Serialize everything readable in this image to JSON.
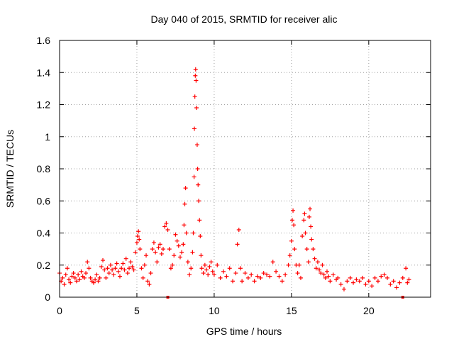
{
  "chart_data": {
    "type": "scatter",
    "title": "Day 040 of 2015, SRMTID for receiver alic",
    "xlabel": "GPS time / hours",
    "ylabel": "SRMTID / TECUs",
    "xlim": [
      0,
      24
    ],
    "ylim": [
      0,
      1.6
    ],
    "xticks": [
      0,
      5,
      10,
      15,
      20
    ],
    "xtick_labels": [
      "0",
      "5",
      "10",
      "15",
      "20"
    ],
    "yticks": [
      0,
      0.2,
      0.4,
      0.6,
      0.8,
      1.0,
      1.2,
      1.4,
      1.6
    ],
    "ytick_labels": [
      "0",
      "0.2",
      "0.4",
      "0.6",
      "0.8",
      "1",
      "1.2",
      "1.4",
      "1.6"
    ],
    "grid": true,
    "marker": "plus",
    "color": "#ff0000",
    "series": [
      {
        "name": "SRMTID",
        "points": [
          [
            0.0,
            0.15
          ],
          [
            0.1,
            0.1
          ],
          [
            0.2,
            0.12
          ],
          [
            0.3,
            0.08
          ],
          [
            0.4,
            0.14
          ],
          [
            0.5,
            0.18
          ],
          [
            0.6,
            0.11
          ],
          [
            0.7,
            0.09
          ],
          [
            0.8,
            0.13
          ],
          [
            0.9,
            0.15
          ],
          [
            1.0,
            0.12
          ],
          [
            1.1,
            0.1
          ],
          [
            1.2,
            0.14
          ],
          [
            1.3,
            0.11
          ],
          [
            1.4,
            0.16
          ],
          [
            1.5,
            0.13
          ],
          [
            1.6,
            0.12
          ],
          [
            1.7,
            0.15
          ],
          [
            1.8,
            0.22
          ],
          [
            1.9,
            0.18
          ],
          [
            2.0,
            0.12
          ],
          [
            2.1,
            0.1
          ],
          [
            2.2,
            0.09
          ],
          [
            2.3,
            0.11
          ],
          [
            2.4,
            0.14
          ],
          [
            2.5,
            0.1
          ],
          [
            2.6,
            0.12
          ],
          [
            2.7,
            0.19
          ],
          [
            2.8,
            0.23
          ],
          [
            2.9,
            0.17
          ],
          [
            3.0,
            0.12
          ],
          [
            3.1,
            0.18
          ],
          [
            3.2,
            0.15
          ],
          [
            3.3,
            0.2
          ],
          [
            3.4,
            0.17
          ],
          [
            3.5,
            0.14
          ],
          [
            3.6,
            0.18
          ],
          [
            3.7,
            0.21
          ],
          [
            3.8,
            0.16
          ],
          [
            3.9,
            0.13
          ],
          [
            4.0,
            0.18
          ],
          [
            4.1,
            0.21
          ],
          [
            4.2,
            0.17
          ],
          [
            4.3,
            0.24
          ],
          [
            4.4,
            0.15
          ],
          [
            4.5,
            0.18
          ],
          [
            4.6,
            0.22
          ],
          [
            4.7,
            0.19
          ],
          [
            4.8,
            0.17
          ],
          [
            4.9,
            0.28
          ],
          [
            5.0,
            0.34
          ],
          [
            5.05,
            0.38
          ],
          [
            5.1,
            0.41
          ],
          [
            5.15,
            0.36
          ],
          [
            5.2,
            0.3
          ],
          [
            5.3,
            0.18
          ],
          [
            5.4,
            0.12
          ],
          [
            5.5,
            0.2
          ],
          [
            5.6,
            0.26
          ],
          [
            5.7,
            0.1
          ],
          [
            5.8,
            0.08
          ],
          [
            5.9,
            0.15
          ],
          [
            6.0,
            0.3
          ],
          [
            6.1,
            0.34
          ],
          [
            6.2,
            0.28
          ],
          [
            6.3,
            0.22
          ],
          [
            6.4,
            0.31
          ],
          [
            6.5,
            0.33
          ],
          [
            6.6,
            0.27
          ],
          [
            6.7,
            0.3
          ],
          [
            6.8,
            0.44
          ],
          [
            6.9,
            0.46
          ],
          [
            7.0,
            0.42
          ],
          [
            7.1,
            0.3
          ],
          [
            7.2,
            0.18
          ],
          [
            7.3,
            0.2
          ],
          [
            7.4,
            0.26
          ],
          [
            7.5,
            0.39
          ],
          [
            7.6,
            0.35
          ],
          [
            7.7,
            0.32
          ],
          [
            7.8,
            0.25
          ],
          [
            7.9,
            0.28
          ],
          [
            8.0,
            0.33
          ],
          [
            8.05,
            0.45
          ],
          [
            8.1,
            0.58
          ],
          [
            8.15,
            0.68
          ],
          [
            8.2,
            0.4
          ],
          [
            8.3,
            0.22
          ],
          [
            8.4,
            0.14
          ],
          [
            8.5,
            0.18
          ],
          [
            8.6,
            0.28
          ],
          [
            8.65,
            0.4
          ],
          [
            8.7,
            0.75
          ],
          [
            8.72,
            1.05
          ],
          [
            8.75,
            1.25
          ],
          [
            8.78,
            1.38
          ],
          [
            8.8,
            1.42
          ],
          [
            8.83,
            1.35
          ],
          [
            8.86,
            1.18
          ],
          [
            8.9,
            0.95
          ],
          [
            8.93,
            0.8
          ],
          [
            8.96,
            0.7
          ],
          [
            9.0,
            0.6
          ],
          [
            9.05,
            0.48
          ],
          [
            9.1,
            0.38
          ],
          [
            9.15,
            0.26
          ],
          [
            9.2,
            0.18
          ],
          [
            9.3,
            0.15
          ],
          [
            9.4,
            0.2
          ],
          [
            9.5,
            0.17
          ],
          [
            9.6,
            0.14
          ],
          [
            9.7,
            0.19
          ],
          [
            9.8,
            0.22
          ],
          [
            9.9,
            0.16
          ],
          [
            10.0,
            0.14
          ],
          [
            10.2,
            0.2
          ],
          [
            10.4,
            0.12
          ],
          [
            10.6,
            0.16
          ],
          [
            10.8,
            0.13
          ],
          [
            11.0,
            0.18
          ],
          [
            11.2,
            0.1
          ],
          [
            11.4,
            0.15
          ],
          [
            11.5,
            0.33
          ],
          [
            11.6,
            0.42
          ],
          [
            11.7,
            0.18
          ],
          [
            11.8,
            0.1
          ],
          [
            12.0,
            0.15
          ],
          [
            12.2,
            0.12
          ],
          [
            12.4,
            0.14
          ],
          [
            12.6,
            0.1
          ],
          [
            12.8,
            0.13
          ],
          [
            13.0,
            0.12
          ],
          [
            13.2,
            0.15
          ],
          [
            13.4,
            0.14
          ],
          [
            13.6,
            0.13
          ],
          [
            13.8,
            0.22
          ],
          [
            14.0,
            0.16
          ],
          [
            14.2,
            0.13
          ],
          [
            14.4,
            0.1
          ],
          [
            14.6,
            0.14
          ],
          [
            14.8,
            0.2
          ],
          [
            14.9,
            0.26
          ],
          [
            15.0,
            0.35
          ],
          [
            15.05,
            0.48
          ],
          [
            15.1,
            0.54
          ],
          [
            15.15,
            0.45
          ],
          [
            15.2,
            0.3
          ],
          [
            15.3,
            0.2
          ],
          [
            15.4,
            0.15
          ],
          [
            15.5,
            0.2
          ],
          [
            15.6,
            0.12
          ],
          [
            15.7,
            0.38
          ],
          [
            15.8,
            0.48
          ],
          [
            15.85,
            0.52
          ],
          [
            15.9,
            0.4
          ],
          [
            16.0,
            0.3
          ],
          [
            16.1,
            0.22
          ],
          [
            16.15,
            0.5
          ],
          [
            16.2,
            0.55
          ],
          [
            16.25,
            0.44
          ],
          [
            16.3,
            0.36
          ],
          [
            16.4,
            0.3
          ],
          [
            16.5,
            0.24
          ],
          [
            16.6,
            0.18
          ],
          [
            16.7,
            0.22
          ],
          [
            16.8,
            0.17
          ],
          [
            16.9,
            0.15
          ],
          [
            17.0,
            0.2
          ],
          [
            17.1,
            0.14
          ],
          [
            17.2,
            0.12
          ],
          [
            17.3,
            0.16
          ],
          [
            17.4,
            0.13
          ],
          [
            17.5,
            0.1
          ],
          [
            17.7,
            0.14
          ],
          [
            17.9,
            0.11
          ],
          [
            18.0,
            0.12
          ],
          [
            18.2,
            0.08
          ],
          [
            18.4,
            0.05
          ],
          [
            18.6,
            0.1
          ],
          [
            18.8,
            0.12
          ],
          [
            19.0,
            0.09
          ],
          [
            19.2,
            0.11
          ],
          [
            19.4,
            0.1
          ],
          [
            19.6,
            0.12
          ],
          [
            19.8,
            0.08
          ],
          [
            20.0,
            0.1
          ],
          [
            20.2,
            0.07
          ],
          [
            20.4,
            0.12
          ],
          [
            20.6,
            0.1
          ],
          [
            20.8,
            0.13
          ],
          [
            21.0,
            0.14
          ],
          [
            21.2,
            0.12
          ],
          [
            21.4,
            0.08
          ],
          [
            21.6,
            0.1
          ],
          [
            21.8,
            0.06
          ],
          [
            22.0,
            0.09
          ],
          [
            22.2,
            0.12
          ],
          [
            22.4,
            0.18
          ],
          [
            22.5,
            0.09
          ],
          [
            22.6,
            0.11
          ]
        ]
      }
    ],
    "axis_markers": [
      7.0,
      22.2
    ]
  }
}
